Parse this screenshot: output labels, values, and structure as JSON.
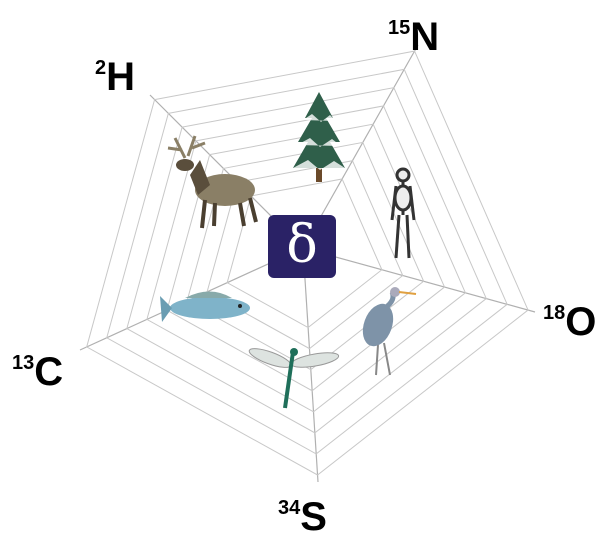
{
  "center": "δ",
  "axes": [
    {
      "mass": "2",
      "element": "H"
    },
    {
      "mass": "15",
      "element": "N"
    },
    {
      "mass": "18",
      "element": "O"
    },
    {
      "mass": "34",
      "element": "S"
    },
    {
      "mass": "13",
      "element": "C"
    }
  ]
}
